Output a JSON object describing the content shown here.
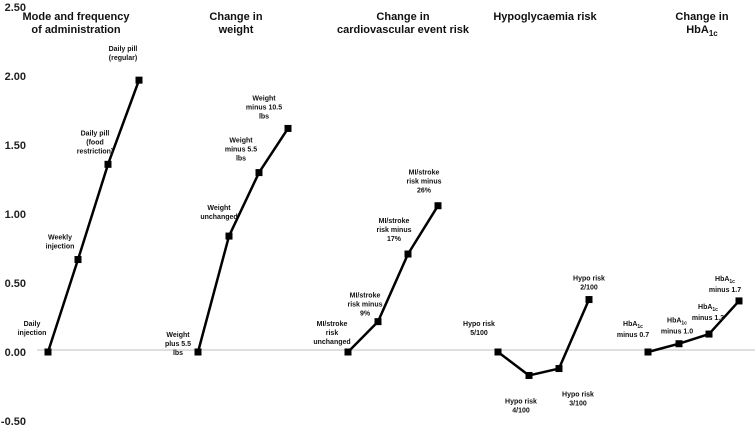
{
  "chart_data": {
    "type": "line",
    "title": "",
    "xlabel": "",
    "ylabel": "",
    "ylim": [
      -0.5,
      2.5
    ],
    "yticks": [
      "2.50",
      "2.00",
      "1.50",
      "1.00",
      "0.50",
      "0.00",
      "-0.50"
    ],
    "ytick_values": [
      2.5,
      2.0,
      1.5,
      1.0,
      0.5,
      0.0,
      -0.5
    ],
    "grid": false,
    "legend": "none",
    "line_color": "#000000",
    "groups": [
      {
        "title_lines": [
          "Mode and frequency",
          "of administration"
        ],
        "points": [
          {
            "label_lines": [
              "Daily",
              "injection"
            ],
            "value": 0.0
          },
          {
            "label_lines": [
              "Weekly",
              "injection"
            ],
            "value": 0.67
          },
          {
            "label_lines": [
              "Daily pill",
              "(food",
              "restriction)"
            ],
            "value": 1.36
          },
          {
            "label_lines": [
              "Daily pill",
              "(regular)"
            ],
            "value": 1.97
          }
        ]
      },
      {
        "title_lines": [
          "Change in",
          "weight"
        ],
        "points": [
          {
            "label_lines": [
              "Weight",
              "plus 5.5",
              "lbs"
            ],
            "value": 0.0
          },
          {
            "label_lines": [
              "Weight",
              "unchanged"
            ],
            "value": 0.84
          },
          {
            "label_lines": [
              "Weight",
              "minus 5.5",
              "lbs"
            ],
            "value": 1.3
          },
          {
            "label_lines": [
              "Weight",
              "minus 10.5",
              "lbs"
            ],
            "value": 1.62
          }
        ]
      },
      {
        "title_lines": [
          "Change in",
          "cardiovascular event risk"
        ],
        "points": [
          {
            "label_lines": [
              "MI/stroke",
              "risk",
              "unchanged"
            ],
            "value": 0.0
          },
          {
            "label_lines": [
              "MI/stroke",
              "risk minus",
              "9%"
            ],
            "value": 0.22
          },
          {
            "label_lines": [
              "MI/stroke",
              "risk minus",
              "17%"
            ],
            "value": 0.71
          },
          {
            "label_lines": [
              "MI/stroke",
              "risk minus",
              "26%"
            ],
            "value": 1.06
          }
        ]
      },
      {
        "title_lines": [
          "Hypoglycaemia risk"
        ],
        "points": [
          {
            "label_lines": [
              "Hypo risk",
              "5/100"
            ],
            "value": 0.0
          },
          {
            "label_lines": [
              "Hypo risk",
              "4/100"
            ],
            "value": -0.17
          },
          {
            "label_lines": [
              "Hypo risk",
              "3/100"
            ],
            "value": -0.12
          },
          {
            "label_lines": [
              "Hypo risk",
              "2/100"
            ],
            "value": 0.38
          }
        ]
      },
      {
        "title_lines": [
          "Change in",
          "HbA1c"
        ],
        "points": [
          {
            "label_lines": [
              "HbA1c",
              "minus 0.7"
            ],
            "value": 0.0
          },
          {
            "label_lines": [
              "HbA1c",
              "minus 1.0"
            ],
            "value": 0.06
          },
          {
            "label_lines": [
              "HbA1c",
              "minus 1.3"
            ],
            "value": 0.13
          },
          {
            "label_lines": [
              "HbA1c",
              "minus 1.7"
            ],
            "value": 0.37
          }
        ]
      }
    ]
  }
}
